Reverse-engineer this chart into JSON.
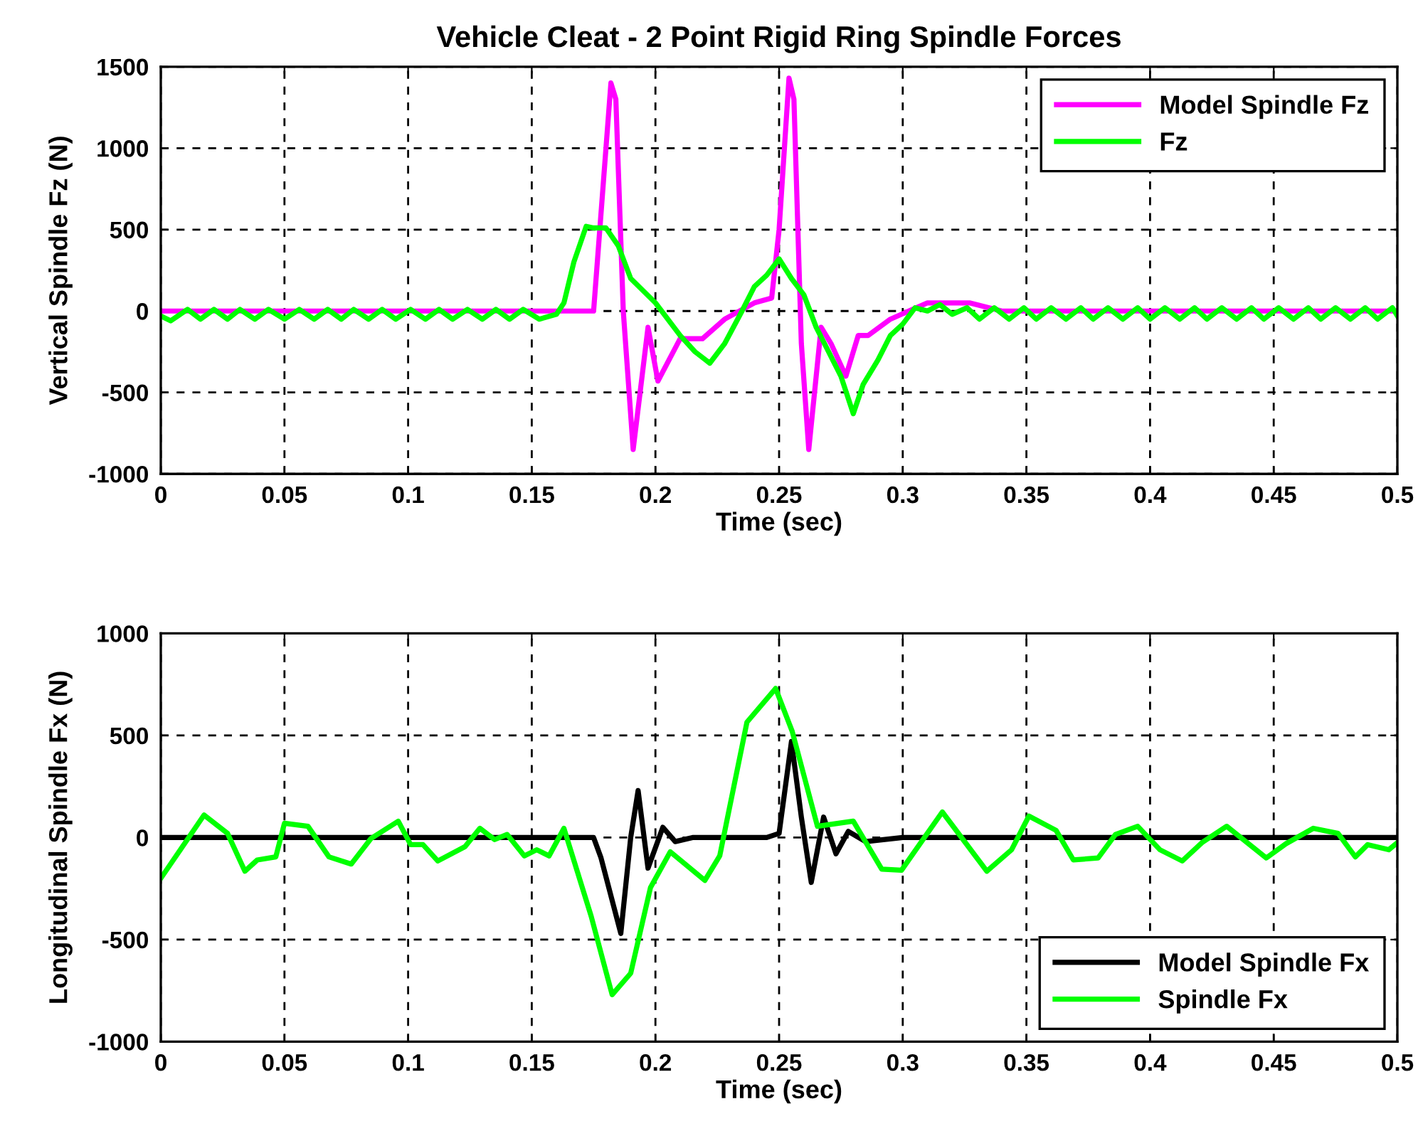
{
  "chart_data": [
    {
      "type": "line",
      "title": "Vehicle Cleat - 2 Point Rigid Ring Spindle Forces",
      "xlabel": "Time (sec)",
      "ylabel": "Vertical Spindle Fz (N)",
      "xlim": [
        0,
        0.5
      ],
      "ylim": [
        -1000,
        1500
      ],
      "xticks": [
        0,
        0.05,
        0.1,
        0.15,
        0.2,
        0.25,
        0.3,
        0.35,
        0.4,
        0.45,
        0.5
      ],
      "yticks": [
        -1000,
        -500,
        0,
        500,
        1000,
        1500
      ],
      "grid": true,
      "legend": "top right",
      "line_style": "solid",
      "marker": "none",
      "series": [
        {
          "name": "Model Spindle Fz",
          "color": "#ff00ff",
          "x": [
            0,
            0.175,
            0.178,
            0.182,
            0.184,
            0.187,
            0.191,
            0.197,
            0.201,
            0.21,
            0.219,
            0.228,
            0.24,
            0.247,
            0.25,
            0.254,
            0.256,
            0.259,
            0.262,
            0.267,
            0.271,
            0.277,
            0.282,
            0.286,
            0.295,
            0.31,
            0.327,
            0.34,
            0.5
          ],
          "values": [
            0,
            0,
            600,
            1400,
            1300,
            0,
            -850,
            -100,
            -430,
            -170,
            -170,
            -50,
            50,
            80,
            500,
            1430,
            1300,
            -200,
            -850,
            -100,
            -200,
            -400,
            -150,
            -150,
            -50,
            50,
            50,
            0,
            0
          ]
        },
        {
          "name": "Fz",
          "color": "#00ff00",
          "x": [
            0,
            0.004,
            0.0108,
            0.016,
            0.0215,
            0.027,
            0.032,
            0.038,
            0.0435,
            0.05,
            0.056,
            0.062,
            0.0675,
            0.073,
            0.078,
            0.084,
            0.0895,
            0.095,
            0.101,
            0.107,
            0.1125,
            0.118,
            0.124,
            0.13,
            0.1355,
            0.141,
            0.1465,
            0.153,
            0.16,
            0.163,
            0.167,
            0.172,
            0.175,
            0.18,
            0.185,
            0.19,
            0.2,
            0.21,
            0.216,
            0.222,
            0.228,
            0.235,
            0.24,
            0.245,
            0.25,
            0.255,
            0.26,
            0.265,
            0.27,
            0.275,
            0.28,
            0.284,
            0.29,
            0.295,
            0.3,
            0.305,
            0.31,
            0.315,
            0.32,
            0.326,
            0.331,
            0.337,
            0.343,
            0.349,
            0.354,
            0.36,
            0.366,
            0.372,
            0.377,
            0.383,
            0.389,
            0.395,
            0.4,
            0.406,
            0.412,
            0.418,
            0.423,
            0.429,
            0.435,
            0.441,
            0.446,
            0.452,
            0.458,
            0.464,
            0.469,
            0.475,
            0.481,
            0.487,
            0.492,
            0.498,
            0.5
          ],
          "values": [
            -30,
            -60,
            10,
            -50,
            10,
            -50,
            10,
            -50,
            10,
            -50,
            10,
            -50,
            10,
            -50,
            10,
            -50,
            10,
            -50,
            10,
            -50,
            10,
            -50,
            10,
            -50,
            10,
            -50,
            10,
            -50,
            -20,
            50,
            300,
            520,
            510,
            510,
            400,
            200,
            50,
            -150,
            -250,
            -320,
            -200,
            0,
            150,
            220,
            320,
            200,
            100,
            -100,
            -250,
            -400,
            -630,
            -450,
            -300,
            -150,
            -80,
            20,
            0,
            40,
            -20,
            20,
            -50,
            20,
            -50,
            20,
            -50,
            20,
            -50,
            20,
            -50,
            20,
            -50,
            20,
            -50,
            20,
            -50,
            20,
            -50,
            20,
            -50,
            20,
            -50,
            20,
            -50,
            20,
            -50,
            20,
            -50,
            20,
            -50,
            20,
            -30
          ]
        }
      ]
    },
    {
      "type": "line",
      "xlabel": "Time (sec)",
      "ylabel": "Longitudinal Spindle Fx (N)",
      "xlim": [
        0,
        0.5
      ],
      "ylim": [
        -1000,
        1000
      ],
      "xticks": [
        0,
        0.05,
        0.1,
        0.15,
        0.2,
        0.25,
        0.3,
        0.35,
        0.4,
        0.45,
        0.5
      ],
      "yticks": [
        -1000,
        -500,
        0,
        500,
        1000
      ],
      "grid": true,
      "legend": "bottom right",
      "line_style": "solid",
      "marker": "none",
      "series": [
        {
          "name": "Model Spindle Fx",
          "color": "#000000",
          "x": [
            0,
            0.175,
            0.178,
            0.186,
            0.19,
            0.193,
            0.197,
            0.203,
            0.208,
            0.215,
            0.245,
            0.25,
            0.255,
            0.259,
            0.263,
            0.268,
            0.273,
            0.278,
            0.285,
            0.3,
            0.5
          ],
          "values": [
            0,
            0,
            -100,
            -470,
            0,
            230,
            -150,
            50,
            -20,
            0,
            0,
            20,
            470,
            100,
            -220,
            100,
            -80,
            30,
            -20,
            0,
            0
          ]
        },
        {
          "name": "Spindle Fx",
          "color": "#00ff00",
          "x": [
            0,
            0.0175,
            0.027,
            0.034,
            0.039,
            0.0465,
            0.05,
            0.0595,
            0.068,
            0.077,
            0.085,
            0.096,
            0.101,
            0.106,
            0.112,
            0.123,
            0.129,
            0.135,
            0.14,
            0.147,
            0.152,
            0.157,
            0.163,
            0.174,
            0.1825,
            0.19,
            0.198,
            0.206,
            0.22,
            0.226,
            0.237,
            0.2486,
            0.2553,
            0.2655,
            0.28,
            0.2915,
            0.2995,
            0.316,
            0.334,
            0.344,
            0.351,
            0.362,
            0.369,
            0.379,
            0.386,
            0.395,
            0.404,
            0.413,
            0.421,
            0.431,
            0.447,
            0.455,
            0.466,
            0.476,
            0.483,
            0.488,
            0.4965,
            0.5
          ],
          "values": [
            -200,
            110,
            20,
            -165,
            -110,
            -95,
            70,
            55,
            -95,
            -130,
            -5,
            80,
            -35,
            -35,
            -115,
            -45,
            45,
            -10,
            15,
            -90,
            -60,
            -90,
            45,
            -385,
            -770,
            -665,
            -245,
            -70,
            -210,
            -90,
            565,
            730,
            520,
            55,
            80,
            -155,
            -160,
            125,
            -165,
            -60,
            105,
            35,
            -110,
            -100,
            15,
            55,
            -60,
            -115,
            -25,
            55,
            -100,
            -30,
            45,
            20,
            -95,
            -35,
            -60,
            -25
          ]
        }
      ]
    }
  ]
}
